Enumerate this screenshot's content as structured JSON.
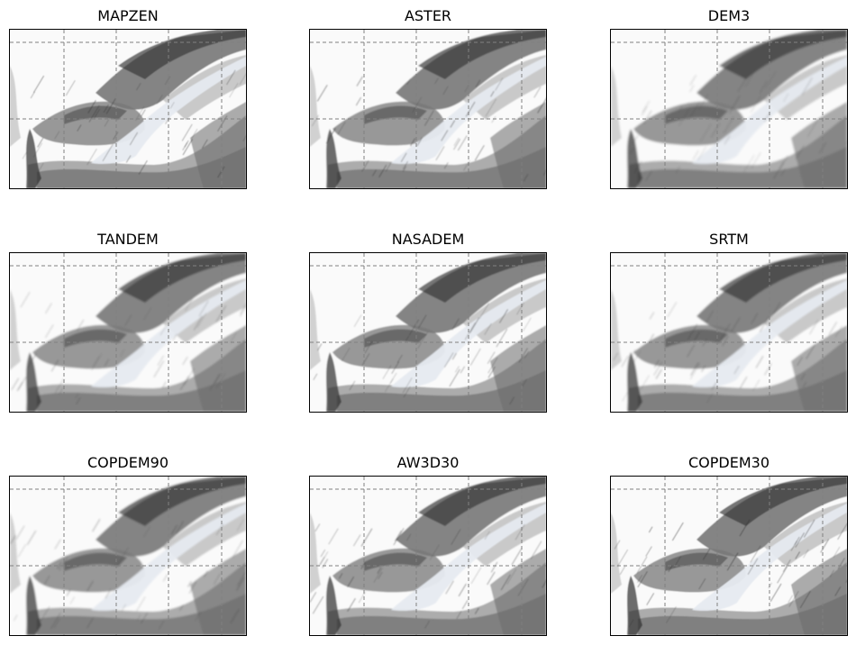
{
  "panels": [
    {
      "title": "MAPZEN"
    },
    {
      "title": "ASTER"
    },
    {
      "title": "DEM3"
    },
    {
      "title": "TANDEM"
    },
    {
      "title": "NASADEM"
    },
    {
      "title": "SRTM"
    },
    {
      "title": "COPDEM90"
    },
    {
      "title": "AW3D30"
    },
    {
      "title": "COPDEM30"
    }
  ],
  "style": {
    "grid_color": "#808080",
    "grid_style": "dashed",
    "frame_color": "#000000",
    "shade_dark": "#2a2a2a",
    "shade_light": "#ffffff",
    "glacier_color": "#e6eaf0"
  }
}
